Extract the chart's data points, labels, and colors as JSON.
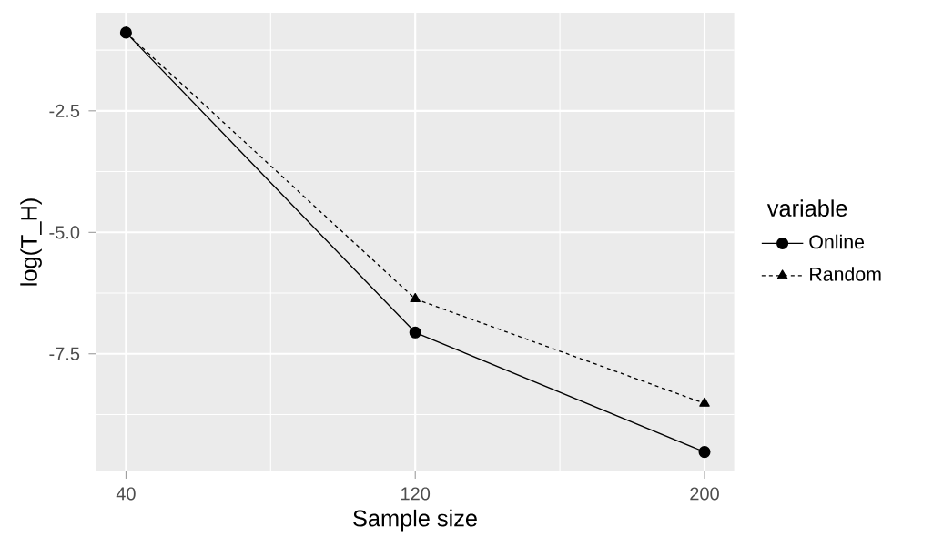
{
  "chart_data": {
    "type": "line",
    "xlabel": "Sample size",
    "ylabel": "log(T_H)",
    "legend_title": "variable",
    "x": [
      40,
      120,
      200
    ],
    "series": [
      {
        "name": "Online",
        "color": "#000000",
        "values": [
          -0.89,
          -7.06,
          -9.52
        ],
        "marker": "circle",
        "line_style": "solid"
      },
      {
        "name": "Random",
        "color": "#000000",
        "values": [
          -0.89,
          -6.37,
          -8.52
        ],
        "marker": "triangle",
        "line_style": "dotted"
      }
    ],
    "xlim": [
      31.7,
      208.2
    ],
    "ylim": [
      -9.92,
      -0.48
    ],
    "xticks": [
      40,
      120,
      200
    ],
    "yticks": [
      {
        "value": -2.5,
        "label": "-2.5"
      },
      {
        "value": -5,
        "label": "-5.0"
      },
      {
        "value": -7.5,
        "label": "-7.5"
      }
    ],
    "grid": true,
    "legend": "right"
  }
}
